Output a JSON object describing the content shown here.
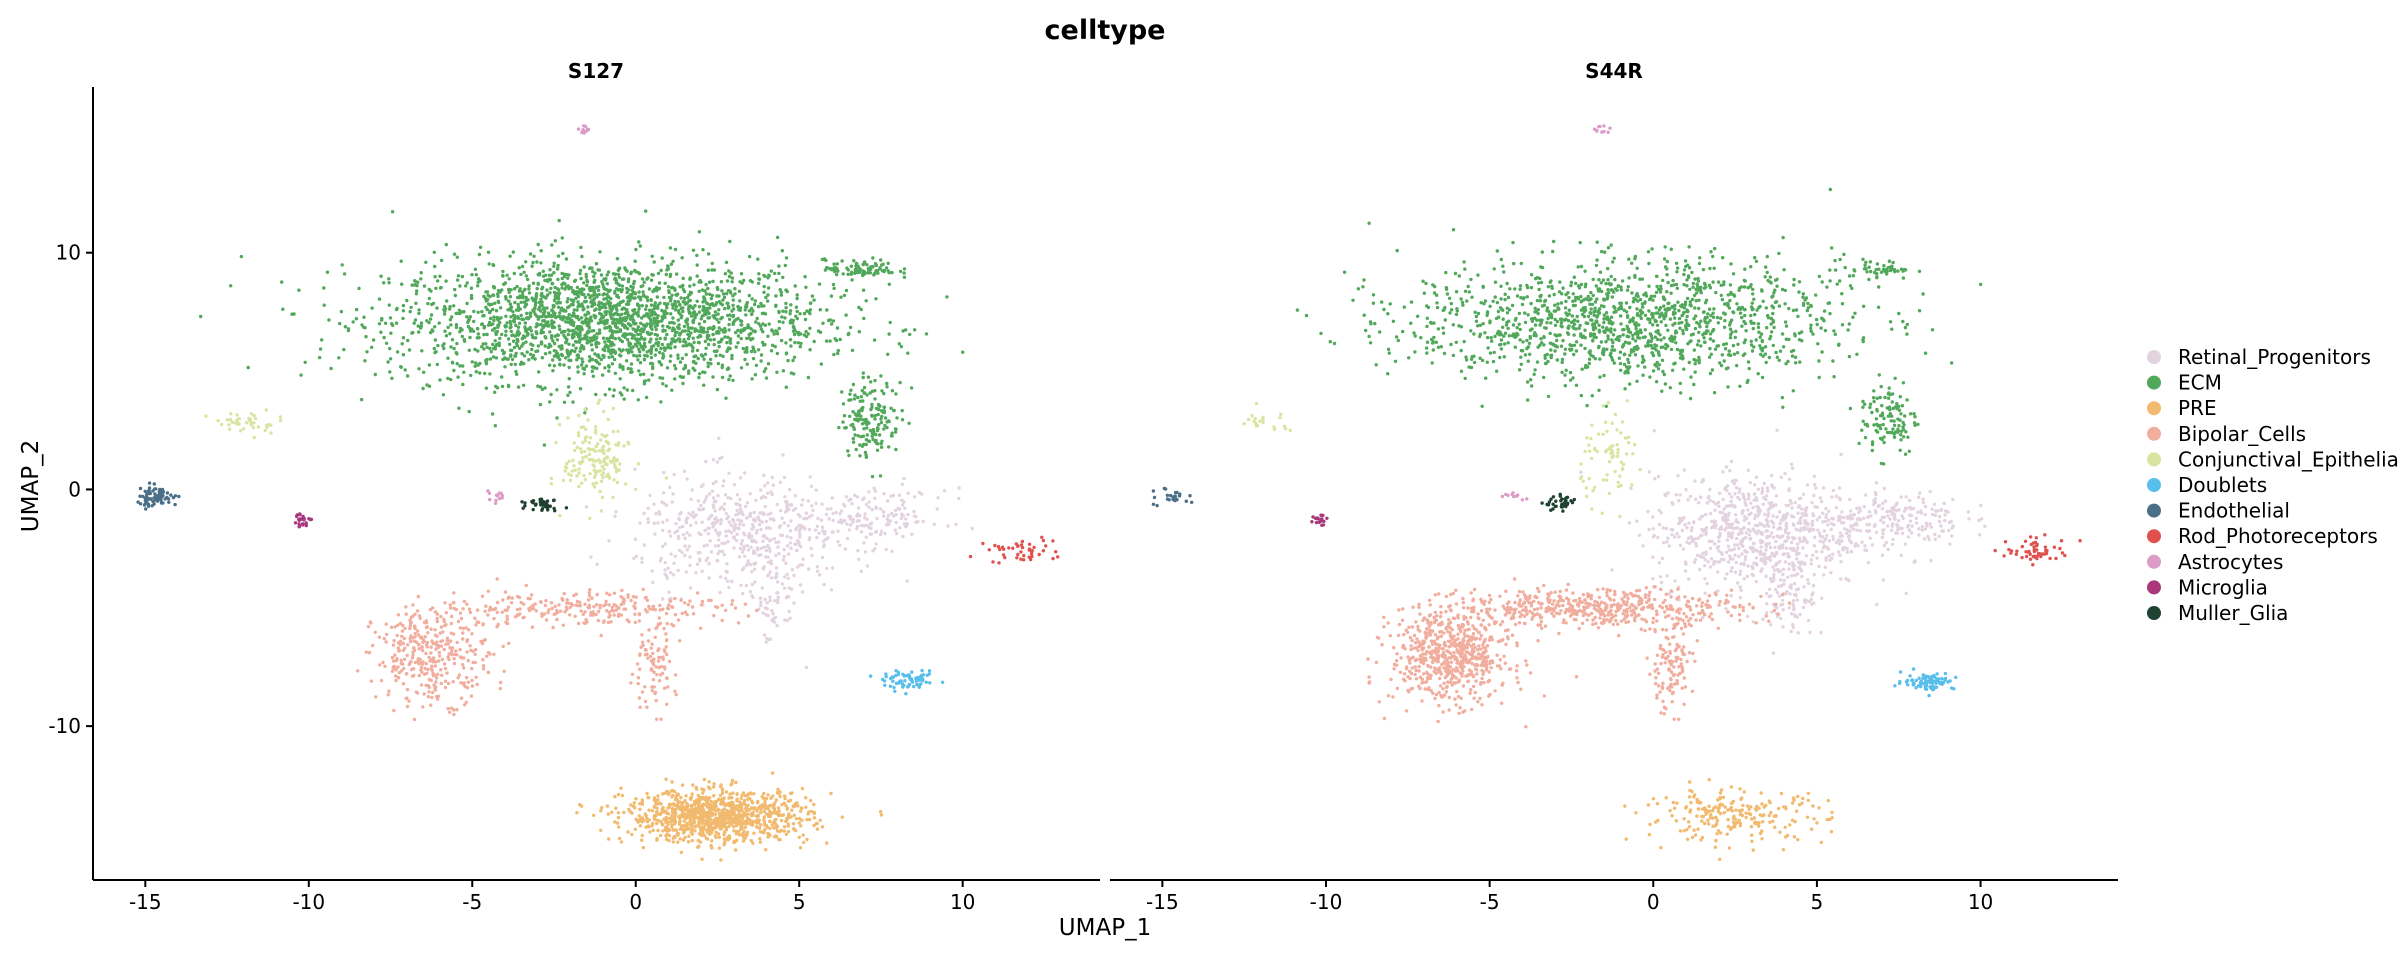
{
  "chart_data": {
    "type": "scatter",
    "title": "celltype",
    "xlabel": "UMAP_1",
    "ylabel": "UMAP_2",
    "xlim": [
      -16.6,
      14.2
    ],
    "ylim": [
      -16.5,
      17.0
    ],
    "xticks": [
      -15,
      -10,
      -5,
      0,
      5,
      10
    ],
    "yticks": [
      -10,
      0,
      10
    ],
    "legend_position": "right",
    "grid": false,
    "facets": [
      "S127",
      "S44R"
    ],
    "legend": [
      {
        "name": "Retinal_Progenitors",
        "color": "#E3D3DF"
      },
      {
        "name": "ECM",
        "color": "#51A85A"
      },
      {
        "name": "PRE",
        "color": "#F2BA6E"
      },
      {
        "name": "Bipolar_Cells",
        "color": "#F1AE9E"
      },
      {
        "name": "Conjunctival_Epithelia",
        "color": "#D7E5A0"
      },
      {
        "name": "Doublets",
        "color": "#58BEEA"
      },
      {
        "name": "Endothelial",
        "color": "#4A6F87"
      },
      {
        "name": "Rod_Photoreceptors",
        "color": "#E0514E"
      },
      {
        "name": "Astrocytes",
        "color": "#DD9CC6"
      },
      {
        "name": "Microglia",
        "color": "#A8377C"
      },
      {
        "name": "Muller_Glia",
        "color": "#1E4130"
      }
    ],
    "clusters": [
      {
        "celltype": "ECM",
        "x": -0.9,
        "y": 7.1,
        "sx": 3.3,
        "sy": 1.3,
        "n": [
          2300,
          1400
        ]
      },
      {
        "celltype": "ECM",
        "x": 6.9,
        "y": 9.3,
        "sx": 0.55,
        "sy": 0.2,
        "n": [
          90,
          50
        ]
      },
      {
        "celltype": "ECM",
        "x": 7.2,
        "y": 3.0,
        "sx": 0.45,
        "sy": 0.8,
        "n": [
          160,
          110
        ]
      },
      {
        "celltype": "Retinal_Progenitors",
        "x": 3.2,
        "y": -1.8,
        "sx": 1.6,
        "sy": 1.2,
        "n": [
          500,
          750
        ]
      },
      {
        "celltype": "Retinal_Progenitors",
        "x": 7.3,
        "y": -1.2,
        "sx": 1.1,
        "sy": 0.6,
        "n": [
          150,
          200
        ]
      },
      {
        "celltype": "Retinal_Progenitors",
        "x": 4.2,
        "y": -4.8,
        "sx": 0.4,
        "sy": 0.9,
        "n": [
          60,
          80
        ]
      },
      {
        "celltype": "Conjunctival_Epithelia",
        "x": -1.2,
        "y": 1.3,
        "sx": 0.5,
        "sy": 0.9,
        "n": [
          160,
          70
        ]
      },
      {
        "celltype": "Conjunctival_Epithelia",
        "x": -11.9,
        "y": 2.8,
        "sx": 0.55,
        "sy": 0.25,
        "n": [
          40,
          20
        ]
      },
      {
        "celltype": "Bipolar_Cells",
        "x": -6.2,
        "y": -7.0,
        "sx": 0.9,
        "sy": 1.0,
        "n": [
          350,
          650
        ]
      },
      {
        "celltype": "Bipolar_Cells",
        "x": -1.5,
        "y": -5.0,
        "sx": 2.2,
        "sy": 0.4,
        "n": [
          250,
          500
        ]
      },
      {
        "celltype": "Bipolar_Cells",
        "x": 0.5,
        "y": -7.6,
        "sx": 0.35,
        "sy": 0.9,
        "n": [
          90,
          110
        ]
      },
      {
        "celltype": "PRE",
        "x": 2.5,
        "y": -13.8,
        "sx": 1.4,
        "sy": 0.55,
        "n": [
          1000,
          220
        ]
      },
      {
        "celltype": "Doublets",
        "x": 8.4,
        "y": -8.1,
        "sx": 0.4,
        "sy": 0.18,
        "n": [
          70,
          80
        ]
      },
      {
        "celltype": "Endothelial",
        "x": -14.7,
        "y": -0.3,
        "sx": 0.35,
        "sy": 0.22,
        "n": [
          70,
          25
        ]
      },
      {
        "celltype": "Rod_Photoreceptors",
        "x": 11.8,
        "y": -2.6,
        "sx": 0.5,
        "sy": 0.25,
        "n": [
          45,
          55
        ]
      },
      {
        "celltype": "Astrocytes",
        "x": -1.6,
        "y": 15.2,
        "sx": 0.15,
        "sy": 0.1,
        "n": [
          12,
          10
        ]
      },
      {
        "celltype": "Astrocytes",
        "x": -4.3,
        "y": -0.3,
        "sx": 0.2,
        "sy": 0.1,
        "n": [
          14,
          10
        ]
      },
      {
        "celltype": "Microglia",
        "x": -10.2,
        "y": -1.3,
        "sx": 0.15,
        "sy": 0.15,
        "n": [
          25,
          20
        ]
      },
      {
        "celltype": "Muller_Glia",
        "x": -2.8,
        "y": -0.6,
        "sx": 0.25,
        "sy": 0.15,
        "n": [
          35,
          35
        ]
      }
    ]
  }
}
